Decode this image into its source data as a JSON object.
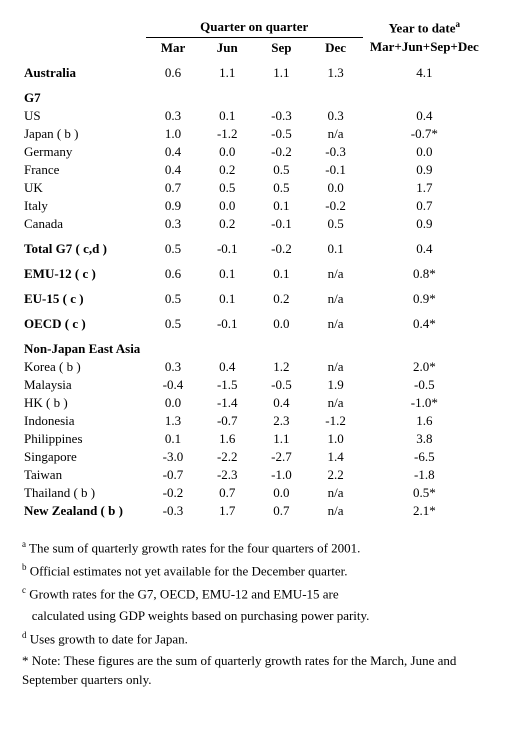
{
  "headers": {
    "group_qoq": "Quarter on quarter",
    "group_ytd": "Year to date",
    "ytd_sup": "a",
    "mar": "Mar",
    "jun": "Jun",
    "sep": "Sep",
    "dec": "Dec",
    "ytd": "Mar+Jun+Sep+Dec"
  },
  "sections": {
    "australia": {
      "label": "Australia",
      "mar": "0.6",
      "jun": "1.1",
      "sep": "1.1",
      "dec": "1.3",
      "ytd": "4.1"
    },
    "g7_label": "G7",
    "g7": [
      {
        "label": "US",
        "mar": "0.3",
        "jun": "0.1",
        "sep": "-0.3",
        "dec": "0.3",
        "ytd": "0.4"
      },
      {
        "label": "Japan ( b )",
        "mar": "1.0",
        "jun": "-1.2",
        "sep": "-0.5",
        "dec": "n/a",
        "ytd": "-0.7*"
      },
      {
        "label": "Germany",
        "mar": "0.4",
        "jun": "0.0",
        "sep": "-0.2",
        "dec": "-0.3",
        "ytd": "0.0"
      },
      {
        "label": "France",
        "mar": "0.4",
        "jun": "0.2",
        "sep": "0.5",
        "dec": "-0.1",
        "ytd": "0.9"
      },
      {
        "label": "UK",
        "mar": "0.7",
        "jun": "0.5",
        "sep": "0.5",
        "dec": "0.0",
        "ytd": "1.7"
      },
      {
        "label": "Italy",
        "mar": "0.9",
        "jun": "0.0",
        "sep": "0.1",
        "dec": "-0.2",
        "ytd": "0.7"
      },
      {
        "label": "Canada",
        "mar": "0.3",
        "jun": "0.2",
        "sep": "-0.1",
        "dec": "0.5",
        "ytd": "0.9"
      }
    ],
    "totals": [
      {
        "label": "Total G7 ( c,d )",
        "mar": "0.5",
        "jun": "-0.1",
        "sep": "-0.2",
        "dec": "0.1",
        "ytd": "0.4",
        "bold": true
      },
      {
        "label": "EMU-12 ( c )",
        "mar": "0.6",
        "jun": "0.1",
        "sep": "0.1",
        "dec": "n/a",
        "ytd": "0.8*",
        "bold": true
      },
      {
        "label": "EU-15 ( c )",
        "mar": "0.5",
        "jun": "0.1",
        "sep": "0.2",
        "dec": "n/a",
        "ytd": "0.9*",
        "bold": true
      },
      {
        "label": "OECD ( c )",
        "mar": "0.5",
        "jun": "-0.1",
        "sep": "0.0",
        "dec": "n/a",
        "ytd": "0.4*",
        "bold": true
      }
    ],
    "njea_label": "Non-Japan East Asia",
    "njea": [
      {
        "label": "Korea ( b )",
        "mar": "0.3",
        "jun": "0.4",
        "sep": "1.2",
        "dec": "n/a",
        "ytd": "2.0*"
      },
      {
        "label": "Malaysia",
        "mar": "-0.4",
        "jun": "-1.5",
        "sep": "-0.5",
        "dec": "1.9",
        "ytd": "-0.5"
      },
      {
        "label": "HK ( b )",
        "mar": "0.0",
        "jun": "-1.4",
        "sep": "0.4",
        "dec": "n/a",
        "ytd": "-1.0*"
      },
      {
        "label": "Indonesia",
        "mar": "1.3",
        "jun": "-0.7",
        "sep": "2.3",
        "dec": "-1.2",
        "ytd": "1.6"
      },
      {
        "label": "Philippines",
        "mar": "0.1",
        "jun": "1.6",
        "sep": "1.1",
        "dec": "1.0",
        "ytd": "3.8"
      },
      {
        "label": "Singapore",
        "mar": "-3.0",
        "jun": "-2.2",
        "sep": "-2.7",
        "dec": "1.4",
        "ytd": "-6.5"
      },
      {
        "label": "Taiwan",
        "mar": "-0.7",
        "jun": "-2.3",
        "sep": "-1.0",
        "dec": "2.2",
        "ytd": "-1.8"
      },
      {
        "label": "Thailand ( b )",
        "mar": "-0.2",
        "jun": "0.7",
        "sep": "0.0",
        "dec": "n/a",
        "ytd": "0.5*"
      }
    ],
    "nz": {
      "label": "New Zealand ( b )",
      "mar": "-0.3",
      "jun": "1.7",
      "sep": "0.7",
      "dec": "n/a",
      "ytd": "2.1*"
    }
  },
  "footnotes": {
    "a": "The sum of quarterly growth rates for the four quarters of 2001.",
    "b": "Official estimates not yet available for the December quarter.",
    "c1": "Growth rates for the G7, OECD, EMU-12 and EMU-15 are",
    "c2": "calculated using GDP weights based on purchasing power parity.",
    "d": "Uses growth to date for Japan.",
    "star": "* Note: These figures are the sum of quarterly growth rates for the March, June and September quarters only."
  }
}
